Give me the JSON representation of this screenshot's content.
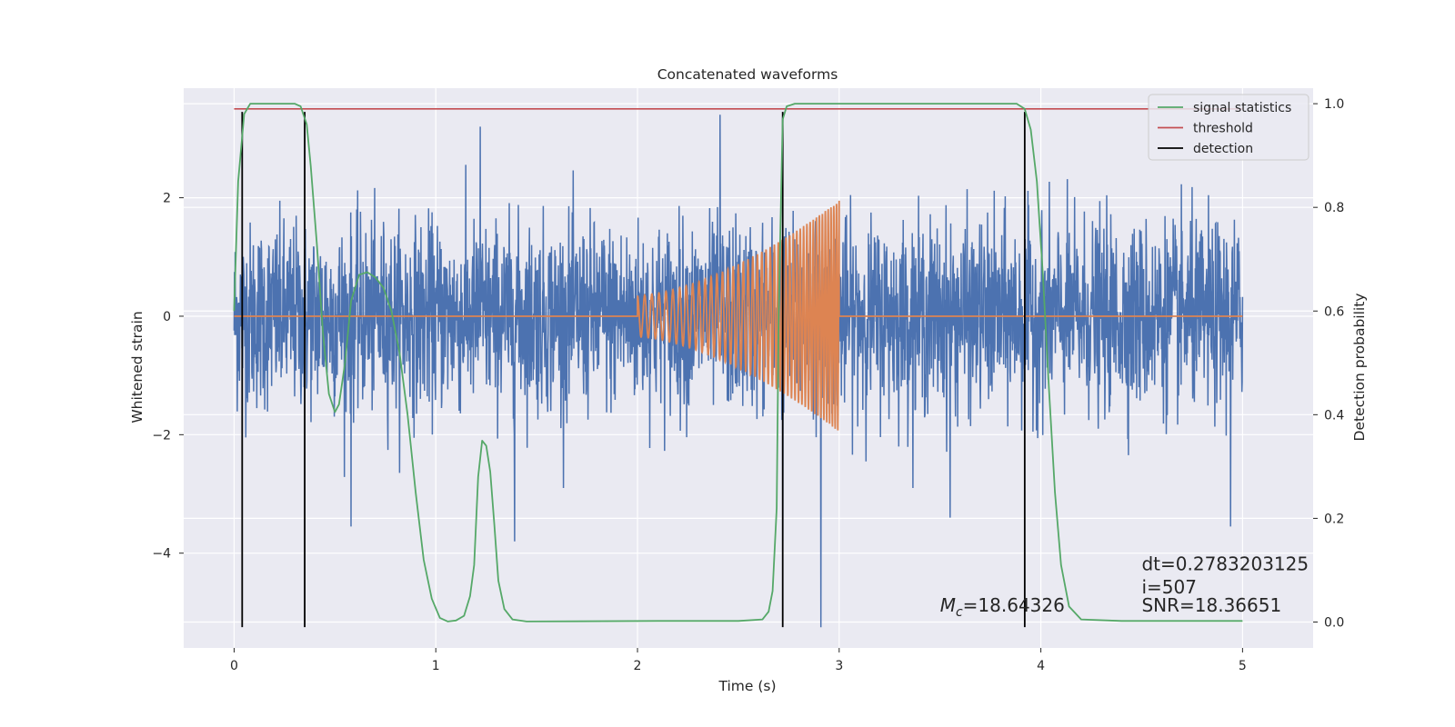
{
  "chart_data": {
    "type": "line",
    "title": "Concatenated waveforms",
    "xlabel": "Time (s)",
    "ylabel_left": "Whitened strain",
    "ylabel_right": "Detection probability",
    "xlim": [
      -0.25,
      5.35
    ],
    "ylim_left": [
      -5.6,
      3.85
    ],
    "ylim_right": [
      -0.05,
      1.03
    ],
    "x_ticks": [
      0,
      1,
      2,
      3,
      4,
      5
    ],
    "x_tick_labels": [
      "0",
      "1",
      "2",
      "3",
      "4",
      "5"
    ],
    "y_left_ticks": [
      2,
      0,
      -2,
      -4
    ],
    "y_left_tick_labels": [
      "2",
      "0",
      "−2",
      "−4"
    ],
    "y_right_ticks": [
      1.0,
      0.8,
      0.6,
      0.4,
      0.2,
      0.0
    ],
    "y_right_tick_labels": [
      "1.0",
      "0.8",
      "0.6",
      "0.4",
      "0.2",
      "0.0"
    ],
    "grid": true,
    "style": "seaborn-darkgrid",
    "legend": {
      "placement": "top-right",
      "entries": [
        {
          "label": "signal statistics",
          "color": "#55a868"
        },
        {
          "label": "threshold",
          "color": "#c44e52"
        },
        {
          "label": "detection",
          "color": "#000000"
        }
      ]
    },
    "series": [
      {
        "axis": "left",
        "color": "#4c72b0",
        "description": "whitened strain noise",
        "x_range": [
          0,
          5
        ],
        "typical_amplitude": 2.0,
        "peaks": [
          {
            "x": 1.22,
            "y": 3.2
          },
          {
            "x": 2.41,
            "y": 3.4
          },
          {
            "x": 2.72,
            "y": -3.8
          },
          {
            "x": 2.91,
            "y": -5.25
          },
          {
            "x": 0.58,
            "y": -3.55
          },
          {
            "x": 1.39,
            "y": -3.8
          },
          {
            "x": 4.94,
            "y": -3.55
          },
          {
            "x": 3.55,
            "y": -3.4
          }
        ]
      },
      {
        "axis": "left",
        "color": "#dd8452",
        "description": "injected chirp signal",
        "x": [
          0,
          2.0,
          2.0,
          3.0,
          3.0,
          5.0
        ],
        "y": [
          0,
          0,
          0.35,
          1.95,
          0,
          0
        ],
        "chirp_start": 2.0,
        "chirp_end": 3.0,
        "amp_start": 0.35,
        "amp_end": 1.95
      },
      {
        "axis": "right",
        "name": "signal statistics",
        "color": "#55a868",
        "x": [
          0.0,
          0.02,
          0.05,
          0.08,
          0.12,
          0.2,
          0.3,
          0.33,
          0.36,
          0.38,
          0.41,
          0.44,
          0.47,
          0.5,
          0.52,
          0.55,
          0.58,
          0.62,
          0.66,
          0.7,
          0.74,
          0.78,
          0.82,
          0.86,
          0.9,
          0.94,
          0.98,
          1.02,
          1.06,
          1.1,
          1.14,
          1.17,
          1.19,
          1.21,
          1.23,
          1.25,
          1.27,
          1.29,
          1.31,
          1.34,
          1.38,
          1.45,
          2.1,
          2.5,
          2.62,
          2.65,
          2.67,
          2.69,
          2.7,
          2.72,
          2.74,
          2.78,
          2.9,
          3.6,
          3.88,
          3.92,
          3.95,
          3.98,
          4.01,
          4.04,
          4.07,
          4.1,
          4.14,
          4.2,
          4.4,
          5.0
        ],
        "y": [
          0.6,
          0.85,
          0.98,
          1.0,
          1.0,
          1.0,
          1.0,
          0.995,
          0.96,
          0.88,
          0.73,
          0.56,
          0.44,
          0.405,
          0.42,
          0.5,
          0.62,
          0.67,
          0.675,
          0.665,
          0.645,
          0.6,
          0.52,
          0.4,
          0.25,
          0.12,
          0.045,
          0.008,
          0.001,
          0.003,
          0.012,
          0.05,
          0.11,
          0.28,
          0.35,
          0.34,
          0.29,
          0.19,
          0.08,
          0.025,
          0.005,
          0.001,
          0.002,
          0.002,
          0.005,
          0.02,
          0.06,
          0.22,
          0.6,
          0.97,
          0.995,
          1.0,
          1.0,
          1.0,
          1.0,
          0.99,
          0.95,
          0.85,
          0.67,
          0.45,
          0.25,
          0.11,
          0.03,
          0.005,
          0.002,
          0.002
        ]
      },
      {
        "axis": "right",
        "name": "threshold",
        "color": "#c44e52",
        "x": [
          0,
          5
        ],
        "y": [
          0.99,
          0.99
        ]
      }
    ],
    "detections": [
      0.04,
      0.35,
      2.72,
      3.92
    ],
    "detection_range_left": [
      -5.25,
      3.45
    ],
    "annotations": [
      {
        "text": "dt=0.2783203125",
        "x": 4.5,
        "y": 0.1
      },
      {
        "text": " i=507",
        "x": 4.5,
        "y": 0.055
      },
      {
        "text": "=18.64326",
        "prefix": "M",
        "subscript": "c",
        "x": 3.5,
        "y": 0.02
      },
      {
        "text": "SNR=18.36651",
        "x": 4.5,
        "y": 0.02
      }
    ]
  }
}
